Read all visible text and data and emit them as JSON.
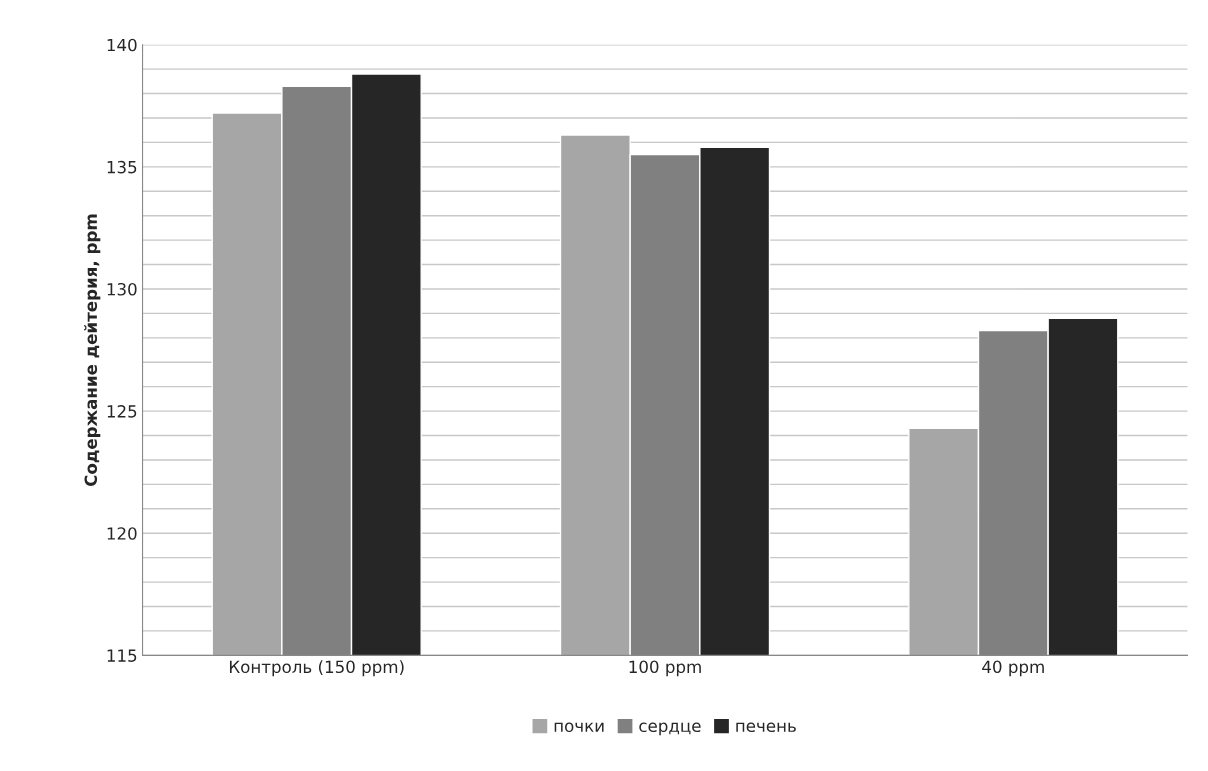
{
  "chart_data": {
    "type": "bar",
    "ylabel": "Содержание дейтерия, ppm",
    "categories": [
      "Контроль (150 ppm)",
      "100 ppm",
      "40 ppm"
    ],
    "series": [
      {
        "name": "почки",
        "color": "#a6a6a6",
        "values": [
          137.2,
          136.3,
          124.3
        ]
      },
      {
        "name": "сердце",
        "color": "#808080",
        "values": [
          138.3,
          135.5,
          128.3
        ]
      },
      {
        "name": "печень",
        "color": "#262626",
        "values": [
          138.8,
          135.8,
          128.8
        ]
      }
    ],
    "ylim": [
      115,
      140
    ],
    "yticks": [
      115,
      {
        "value": 116,
        "label": null
      },
      {
        "value": 117,
        "label": null
      },
      {
        "value": 118,
        "label": null
      },
      {
        "value": 119,
        "label": null
      },
      120,
      {
        "value": 121,
        "label": null
      },
      {
        "value": 122,
        "label": null
      },
      {
        "value": 123,
        "label": null
      },
      {
        "value": 124,
        "label": null
      },
      125,
      {
        "value": 126,
        "label": null
      },
      {
        "value": 127,
        "label": null
      },
      {
        "value": 128,
        "label": null
      },
      {
        "value": 129,
        "label": null
      },
      130,
      {
        "value": 131,
        "label": null
      },
      {
        "value": 132,
        "label": null
      },
      {
        "value": 133,
        "label": null
      },
      {
        "value": 134,
        "label": null
      },
      135,
      {
        "value": 136,
        "label": null
      },
      {
        "value": 137,
        "label": null
      },
      {
        "value": 138,
        "label": null
      },
      {
        "value": 139,
        "label": null
      },
      140
    ],
    "grid": "y",
    "legend": "bottom"
  }
}
